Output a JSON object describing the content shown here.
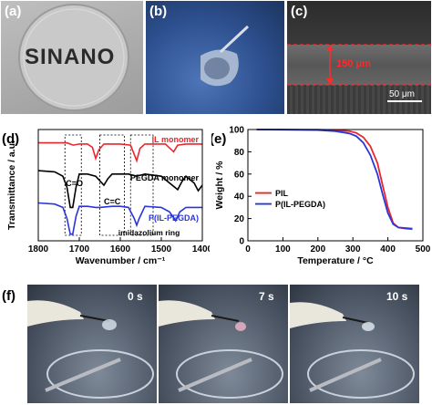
{
  "panels": {
    "a": {
      "label": "(a)",
      "sample_text": "SINANO"
    },
    "b": {
      "label": "(b)"
    },
    "c": {
      "label": "(c)",
      "thickness": "150 μm",
      "scale": "50 μm"
    },
    "d": {
      "label": "(d)"
    },
    "e": {
      "label": "(e)"
    },
    "f": {
      "label": "(f)",
      "times": [
        "0 s",
        "7 s",
        "10 s"
      ]
    }
  },
  "colors": {
    "red": "#e8262e",
    "blue": "#2a36d8",
    "black": "#000000"
  },
  "chart_data": [
    {
      "type": "line",
      "panel": "d",
      "xlabel": "Wavenumber / cm⁻¹",
      "ylabel": "Transmittance / a.u.",
      "xlim": [
        1800,
        1400
      ],
      "x_ticks": [
        "1800",
        "1700",
        "1600",
        "1500",
        "1400"
      ],
      "y_ticks_visible": false,
      "series": [
        {
          "name": "IL monomer",
          "color": "#e8262e",
          "points": [
            [
              1800,
              0.88
            ],
            [
              1760,
              0.88
            ],
            [
              1730,
              0.88
            ],
            [
              1715,
              0.86
            ],
            [
              1700,
              0.87
            ],
            [
              1680,
              0.87
            ],
            [
              1668,
              0.84
            ],
            [
              1660,
              0.74
            ],
            [
              1652,
              0.82
            ],
            [
              1640,
              0.87
            ],
            [
              1620,
              0.87
            ],
            [
              1600,
              0.87
            ],
            [
              1575,
              0.86
            ],
            [
              1560,
              0.72
            ],
            [
              1552,
              0.83
            ],
            [
              1540,
              0.87
            ],
            [
              1520,
              0.87
            ],
            [
              1490,
              0.87
            ],
            [
              1470,
              0.8
            ],
            [
              1460,
              0.86
            ],
            [
              1440,
              0.87
            ],
            [
              1400,
              0.87
            ]
          ]
        },
        {
          "name": "PEGDA monomer",
          "color": "#000000",
          "points": [
            [
              1800,
              0.63
            ],
            [
              1760,
              0.62
            ],
            [
              1740,
              0.58
            ],
            [
              1730,
              0.48
            ],
            [
              1722,
              0.3
            ],
            [
              1716,
              0.3
            ],
            [
              1708,
              0.48
            ],
            [
              1700,
              0.6
            ],
            [
              1680,
              0.6
            ],
            [
              1660,
              0.58
            ],
            [
              1640,
              0.5
            ],
            [
              1630,
              0.56
            ],
            [
              1620,
              0.6
            ],
            [
              1600,
              0.6
            ],
            [
              1580,
              0.6
            ],
            [
              1560,
              0.58
            ],
            [
              1540,
              0.6
            ],
            [
              1500,
              0.58
            ],
            [
              1480,
              0.52
            ],
            [
              1460,
              0.46
            ],
            [
              1450,
              0.53
            ],
            [
              1440,
              0.58
            ],
            [
              1420,
              0.52
            ],
            [
              1410,
              0.45
            ],
            [
              1400,
              0.5
            ]
          ]
        },
        {
          "name": "P(IL-PEGDA)",
          "color": "#2a36d8",
          "points": [
            [
              1800,
              0.34
            ],
            [
              1760,
              0.33
            ],
            [
              1740,
              0.3
            ],
            [
              1730,
              0.2
            ],
            [
              1722,
              0.06
            ],
            [
              1716,
              0.06
            ],
            [
              1708,
              0.22
            ],
            [
              1700,
              0.31
            ],
            [
              1680,
              0.31
            ],
            [
              1660,
              0.3
            ],
            [
              1650,
              0.3
            ],
            [
              1620,
              0.31
            ],
            [
              1600,
              0.31
            ],
            [
              1580,
              0.3
            ],
            [
              1566,
              0.2
            ],
            [
              1560,
              0.14
            ],
            [
              1554,
              0.2
            ],
            [
              1540,
              0.31
            ],
            [
              1500,
              0.3
            ],
            [
              1480,
              0.26
            ],
            [
              1465,
              0.18
            ],
            [
              1455,
              0.26
            ],
            [
              1440,
              0.3
            ],
            [
              1400,
              0.3
            ]
          ]
        }
      ],
      "annotations": [
        "C=O",
        "C=C",
        "imidazolium ring"
      ]
    },
    {
      "type": "line",
      "panel": "e",
      "xlabel": "Temperature / °C",
      "ylabel": "Weight / %",
      "xlim": [
        0,
        500
      ],
      "ylim": [
        0,
        100
      ],
      "x_ticks": [
        "0",
        "100",
        "200",
        "300",
        "400",
        "500"
      ],
      "y_ticks": [
        "0",
        "20",
        "40",
        "60",
        "80",
        "100"
      ],
      "legend": "center-left",
      "series": [
        {
          "name": "PIL",
          "color": "#e8262e",
          "points": [
            [
              25,
              100
            ],
            [
              100,
              100
            ],
            [
              200,
              99.8
            ],
            [
              250,
              99.5
            ],
            [
              290,
              98.5
            ],
            [
              310,
              97
            ],
            [
              330,
              93
            ],
            [
              350,
              85
            ],
            [
              370,
              70
            ],
            [
              385,
              50
            ],
            [
              400,
              30
            ],
            [
              415,
              16
            ],
            [
              430,
              12
            ],
            [
              450,
              11
            ],
            [
              470,
              10.5
            ]
          ]
        },
        {
          "name": "P(IL-PEGDA)",
          "color": "#2a36d8",
          "points": [
            [
              25,
              100
            ],
            [
              100,
              99.8
            ],
            [
              200,
              99.5
            ],
            [
              250,
              98.5
            ],
            [
              290,
              96.5
            ],
            [
              310,
              94
            ],
            [
              330,
              88
            ],
            [
              350,
              77
            ],
            [
              370,
              60
            ],
            [
              385,
              42
            ],
            [
              400,
              25
            ],
            [
              415,
              15
            ],
            [
              430,
              12
            ],
            [
              450,
              11.5
            ],
            [
              470,
              11
            ]
          ]
        }
      ]
    }
  ]
}
